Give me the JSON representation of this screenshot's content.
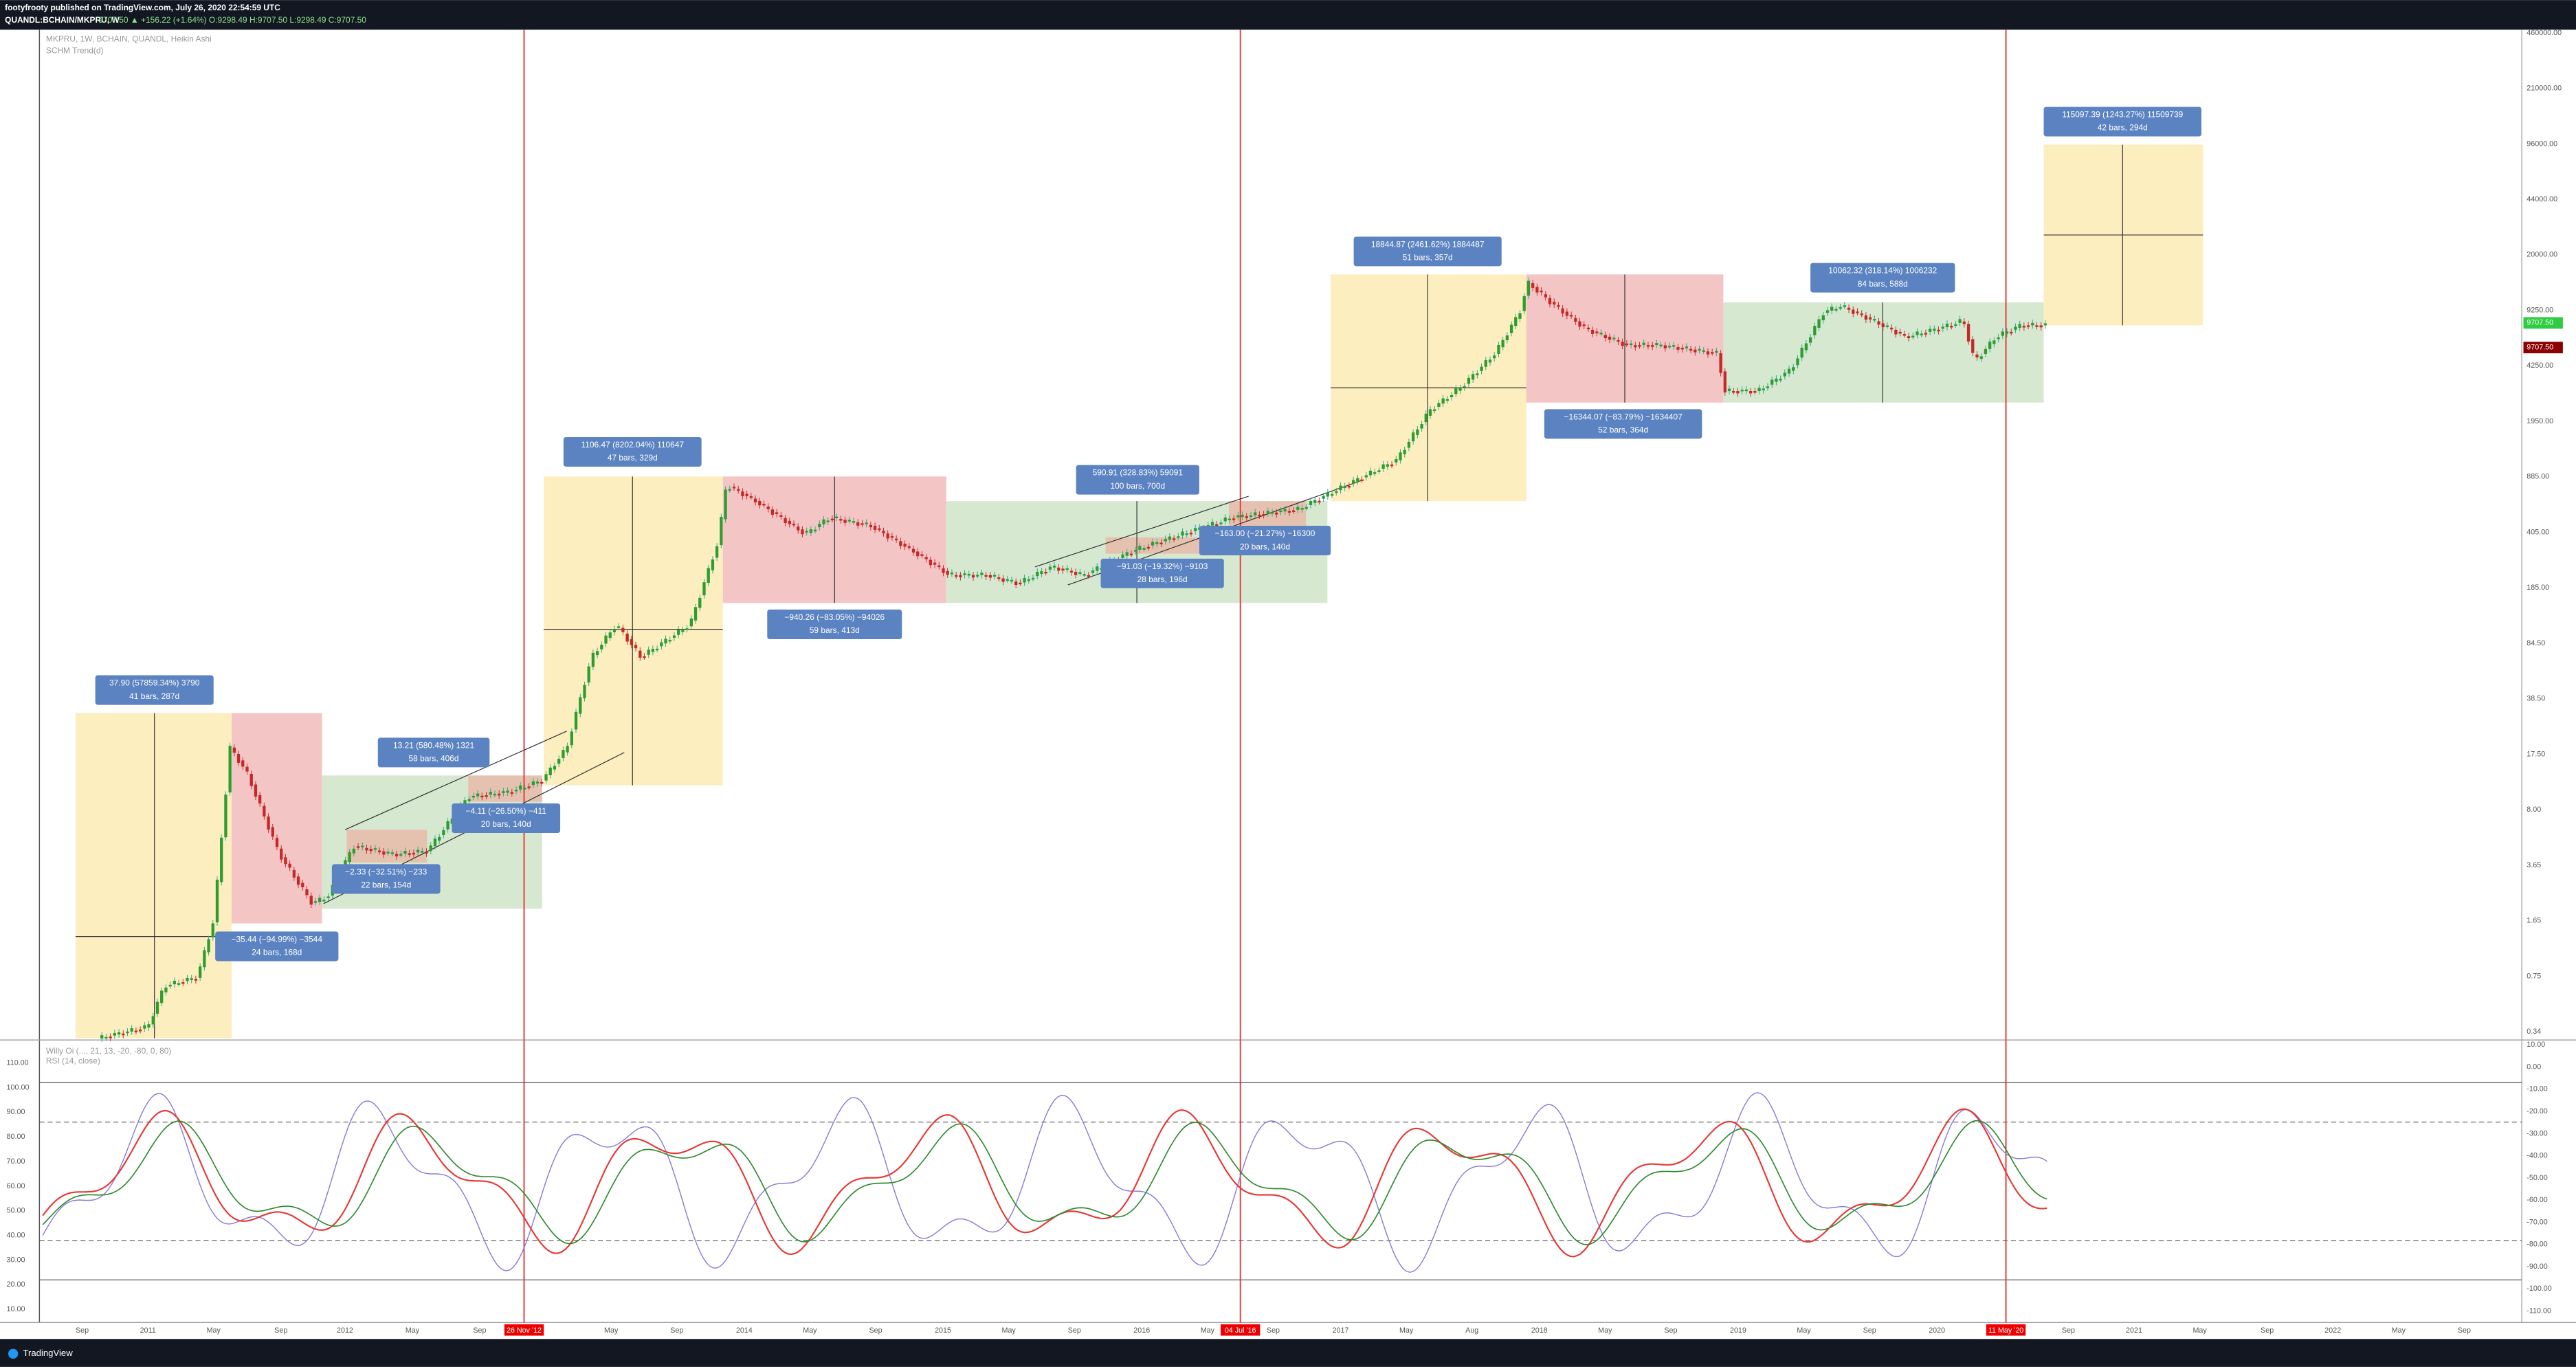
{
  "header": {
    "author_line": "footyfrooty published on TradingView.com, July 26, 2020 22:54:59 UTC",
    "symbol": "QUANDL:BCHAIN/MKPRU, W",
    "ohlc": "9707.50 ▲ +156.22 (+1.64%) O:9298.49 H:9707.50 L:9298.49 C:9707.50"
  },
  "legend": [
    "MKPRU, 1W, BCHAIN, QUANDL, Heikin Ashi",
    "SCHM Trend(d)"
  ],
  "measurements": [
    {
      "line1": "37.90 (57859.34%) 3790",
      "line2": "41 bars, 287d"
    },
    {
      "line1": "−35.44 (−94.99%) −3544",
      "line2": "24 bars, 168d"
    },
    {
      "line1": "13.21 (580.48%) 1321",
      "line2": "58 bars, 406d"
    },
    {
      "line1": "−2.33 (−32.51%) −233",
      "line2": "22 bars, 154d"
    },
    {
      "line1": "−4.11 (−26.50%) −411",
      "line2": "20 bars, 140d"
    },
    {
      "line1": "1106.47 (8202.04%) 110647",
      "line2": "47 bars, 329d"
    },
    {
      "line1": "−940.26 (−83.05%) −94026",
      "line2": "59 bars, 413d"
    },
    {
      "line1": "590.91 (328.83%) 59091",
      "line2": "100 bars, 700d"
    },
    {
      "line1": "−91.03 (−19.32%) −9103",
      "line2": "28 bars, 196d"
    },
    {
      "line1": "−163.00 (−21.27%) −16300",
      "line2": "20 bars, 140d"
    },
    {
      "line1": "18844.87 (2461.62%) 1884487",
      "line2": "51 bars, 357d"
    },
    {
      "line1": "−16344.07 (−83.79%) −1634407",
      "line2": "52 bars, 364d"
    },
    {
      "line1": "10062.32 (318.14%) 1006232",
      "line2": "84 bars, 588d"
    },
    {
      "line1": "115097.39 (1243.27%) 11509739",
      "line2": "42 bars, 294d"
    }
  ],
  "price_axis": [
    "460000.00",
    "210000.00",
    "96000.00",
    "44000.00",
    "20000.00",
    "9250.00",
    "4250.00",
    "1950.00",
    "885.00",
    "405.00",
    "185.00",
    "84.50",
    "38.50",
    "17.50",
    "8.00",
    "3.65",
    "1.65",
    "0.75",
    "0.34"
  ],
  "price_tags": [
    "9707.50",
    "9707.50"
  ],
  "time_axis": [
    "Sep",
    "2011",
    "May",
    "Sep",
    "2012",
    "May",
    "Sep",
    "26 Nov '12",
    "May",
    "Sep",
    "2014",
    "May",
    "Sep",
    "2015",
    "May",
    "Sep",
    "2016",
    "May",
    "04 Jul '16",
    "Sep",
    "2017",
    "May",
    "Aug",
    "2018",
    "May",
    "Sep",
    "2019",
    "May",
    "Sep",
    "2020",
    "11 May '20",
    "Sep",
    "2021",
    "May",
    "Sep",
    "2022",
    "May",
    "Sep"
  ],
  "indicator": {
    "legend": [
      "Willy Oi (..., 21, 13, -20, -80, 0, 80)",
      "RSI (14, close)"
    ],
    "left_axis": [
      "110.00",
      "100.00",
      "90.00",
      "80.00",
      "70.00",
      "60.00",
      "50.00",
      "40.00",
      "30.00",
      "20.00",
      "10.00"
    ],
    "right_axis": [
      "10.00",
      "0.00",
      "-10.00",
      "-20.00",
      "-30.00",
      "-40.00",
      "-50.00",
      "-60.00",
      "-70.00",
      "-80.00",
      "-90.00",
      "-100.00",
      "-110.00"
    ]
  },
  "footer": "TradingView"
}
